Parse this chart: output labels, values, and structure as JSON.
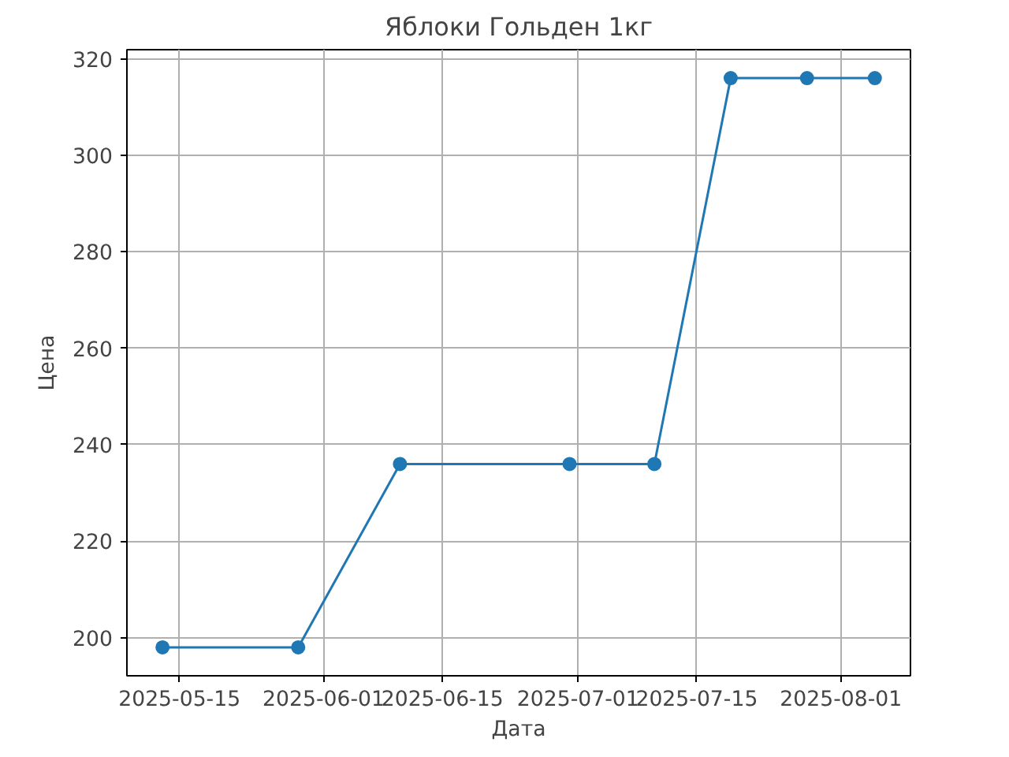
{
  "chart_data": {
    "type": "line",
    "title": "Яблоки Гольден 1кг",
    "xlabel": "Дата",
    "ylabel": "Цена",
    "x": [
      "2025-05-13",
      "2025-05-29",
      "2025-06-10",
      "2025-06-30",
      "2025-07-10",
      "2025-07-19",
      "2025-07-28",
      "2025-08-05"
    ],
    "series": [
      {
        "color": "#1f77b4",
        "values": [
          198,
          198,
          236,
          236,
          236,
          316,
          316,
          316
        ]
      }
    ],
    "xlim": [
      "2025-05-08T19:12",
      "2025-08-09T04:48"
    ],
    "ylim": [
      192.1,
      321.9
    ],
    "xticks": [
      "2025-05-15",
      "2025-06-01",
      "2025-06-15",
      "2025-07-01",
      "2025-07-15",
      "2025-08-01"
    ],
    "yticks": [
      200,
      220,
      240,
      260,
      280,
      300,
      320
    ],
    "grid": true,
    "marker": "circle",
    "line_style": "solid"
  }
}
